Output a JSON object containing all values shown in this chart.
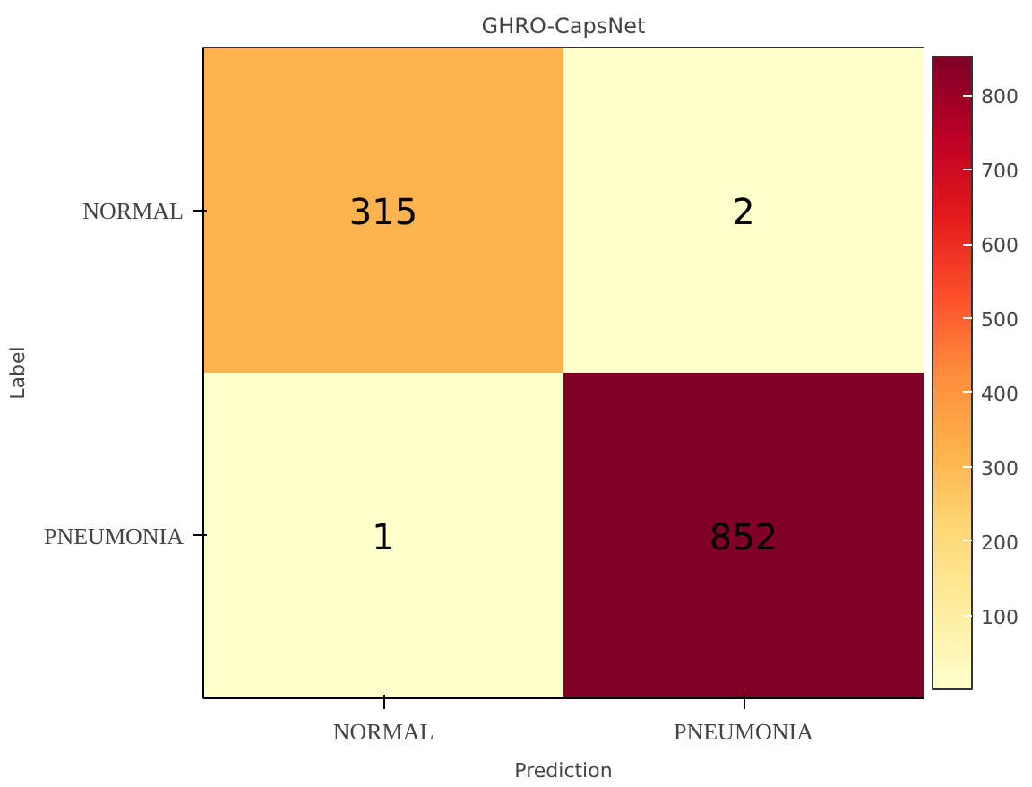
{
  "chart_data": {
    "type": "heatmap",
    "title": "GHRO-CapsNet",
    "xlabel": "Prediction",
    "ylabel": "Label",
    "categories": [
      "NORMAL",
      "PNEUMONIA"
    ],
    "y_categories": [
      "NORMAL",
      "PNEUMONIA"
    ],
    "cells": [
      [
        315,
        2
      ],
      [
        1,
        852
      ]
    ],
    "clim": [
      1,
      852
    ],
    "cticks": [
      100,
      200,
      300,
      400,
      500,
      600,
      700,
      800
    ],
    "data_labels": true
  }
}
